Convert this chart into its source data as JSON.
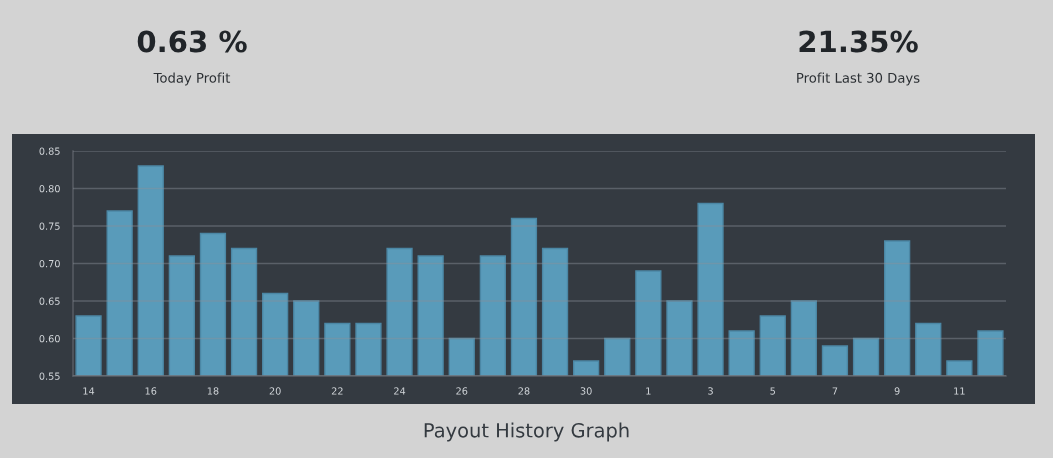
{
  "chart_data": {
    "type": "bar",
    "title": "Payout History Graph",
    "annotations": [
      "0.63 %",
      "Today Profit",
      "21.35%",
      "Profit Last 30 Days"
    ],
    "categories": [
      "14",
      null,
      "16",
      null,
      "18",
      null,
      "20",
      null,
      "22",
      null,
      "24",
      null,
      "26",
      null,
      "28",
      null,
      "30",
      null,
      "1",
      null,
      "3",
      null,
      "5",
      null,
      "7",
      null,
      "9",
      null,
      "11",
      null
    ],
    "values": [
      0.63,
      0.77,
      0.83,
      0.71,
      0.74,
      0.72,
      0.66,
      0.65,
      0.62,
      0.62,
      0.72,
      0.71,
      0.6,
      0.71,
      0.76,
      0.72,
      0.57,
      0.6,
      0.69,
      0.65,
      0.78,
      0.61,
      0.63,
      0.65,
      0.59,
      0.6,
      0.73,
      0.62,
      0.57,
      0.61
    ],
    "color": "#5ca1c1",
    "ylim": [
      0.55,
      0.85
    ],
    "yticks": [
      0.55,
      {
        "value": 0.6,
        "label": "0.60"
      },
      0.65,
      {
        "value": 0.7,
        "label": "0.70"
      },
      0.75,
      {
        "value": 0.8,
        "label": "0.80"
      },
      0.85
    ],
    "grid": "y"
  }
}
